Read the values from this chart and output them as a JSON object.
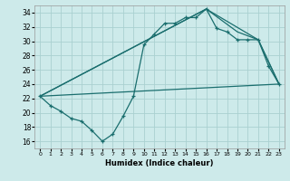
{
  "xlabel": "Humidex (Indice chaleur)",
  "bg_color": "#cdeaea",
  "grid_color": "#aad0d0",
  "line_color": "#1a6e6e",
  "xlim": [
    -0.5,
    23.5
  ],
  "ylim": [
    15.0,
    35.0
  ],
  "yticks": [
    16,
    18,
    20,
    22,
    24,
    26,
    28,
    30,
    32,
    34
  ],
  "xticks": [
    0,
    1,
    2,
    3,
    4,
    5,
    6,
    7,
    8,
    9,
    10,
    11,
    12,
    13,
    14,
    15,
    16,
    17,
    18,
    19,
    20,
    21,
    22,
    23
  ],
  "line1_x": [
    0,
    1,
    2,
    3,
    4,
    5,
    6,
    7,
    8,
    9,
    10,
    11,
    12,
    13,
    14,
    15,
    16,
    17,
    18,
    19,
    20,
    21,
    22,
    23
  ],
  "line1_y": [
    22.3,
    21.0,
    20.2,
    19.2,
    18.8,
    17.5,
    16.0,
    17.0,
    19.5,
    22.3,
    29.5,
    31.0,
    32.5,
    32.5,
    33.3,
    33.3,
    34.5,
    31.8,
    31.3,
    30.2,
    30.2,
    30.2,
    26.5,
    24.0
  ],
  "line2_x": [
    0,
    23
  ],
  "line2_y": [
    22.3,
    24.0
  ],
  "line3_x": [
    0,
    16,
    21,
    23
  ],
  "line3_y": [
    22.3,
    34.5,
    30.2,
    24.0
  ],
  "line4_x": [
    0,
    16,
    19,
    21,
    23
  ],
  "line4_y": [
    22.3,
    34.5,
    31.3,
    30.2,
    24.0
  ]
}
